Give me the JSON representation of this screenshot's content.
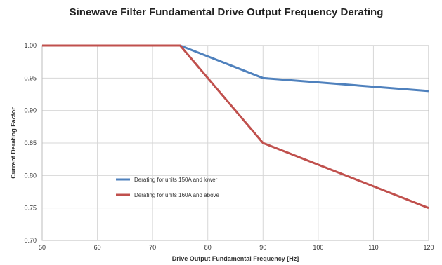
{
  "chart_data": {
    "type": "line",
    "title": "Sinewave Filter Fundamental Drive Output Frequency Derating",
    "xlabel": "Drive Output Fundamental Frequency [Hz]",
    "ylabel": "Current Derating Factor",
    "xlim": [
      50,
      120
    ],
    "ylim": [
      0.7,
      1.0
    ],
    "x_ticks": [
      50,
      60,
      70,
      80,
      90,
      100,
      110,
      120
    ],
    "y_ticks": [
      0.7,
      0.75,
      0.8,
      0.85,
      0.9,
      0.95,
      1.0
    ],
    "y_tick_labels": [
      "0.70",
      "0.75",
      "0.80",
      "0.85",
      "0.90",
      "0.95",
      "1.00"
    ],
    "grid": true,
    "legend_position": "center-left",
    "series": [
      {
        "name": "Derating for units 150A and lower",
        "color": "#4f81bd",
        "x": [
          50,
          75,
          90,
          120
        ],
        "y": [
          1.0,
          1.0,
          0.95,
          0.93
        ]
      },
      {
        "name": "Derating for units 160A and above",
        "color": "#c0504d",
        "x": [
          50,
          75,
          90,
          120
        ],
        "y": [
          1.0,
          1.0,
          0.85,
          0.75
        ]
      }
    ]
  }
}
